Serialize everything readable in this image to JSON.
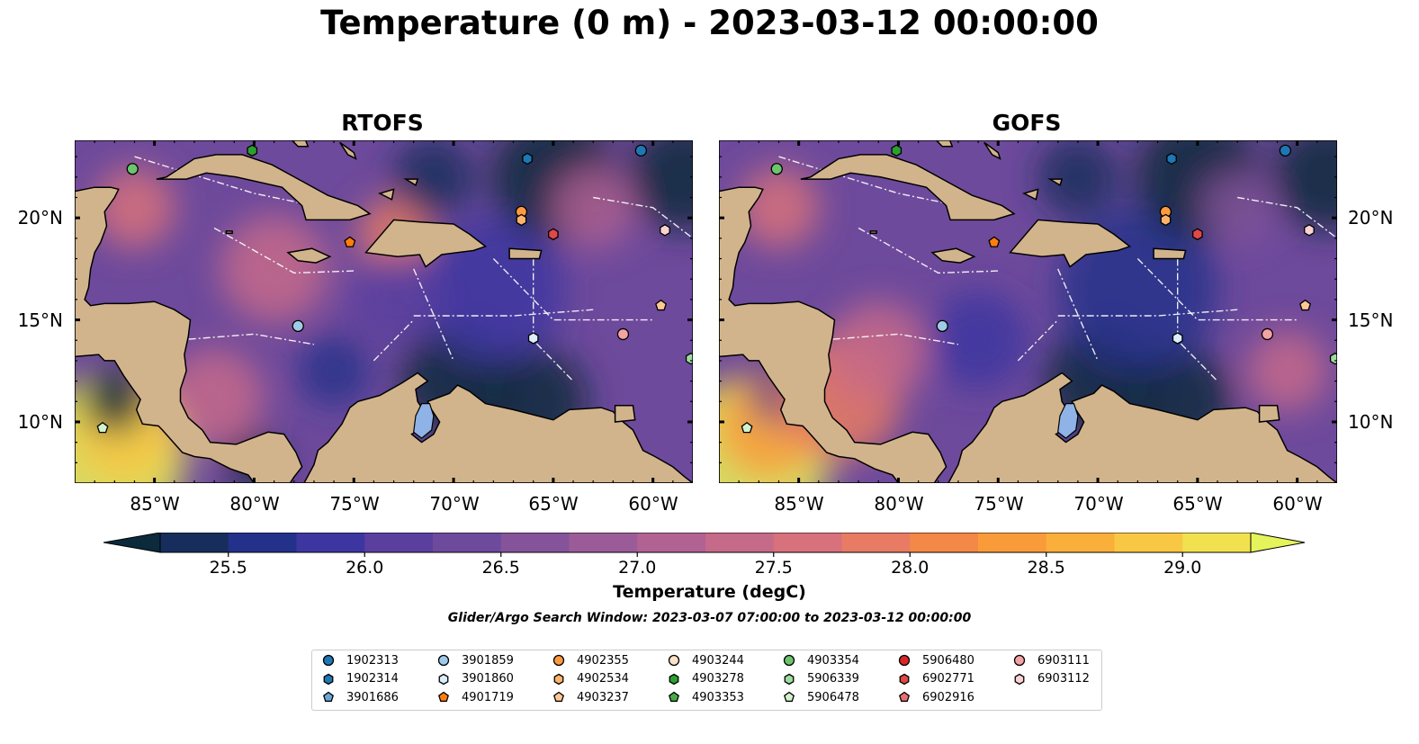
{
  "title": "Temperature (0 m) - 2023-03-12 00:00:00",
  "panels": [
    {
      "title": "RTOFS",
      "lon_ticks": [
        "85°W",
        "80°W",
        "75°W",
        "70°W",
        "65°W",
        "60°W"
      ],
      "lat_ticks": [
        "20°N",
        "15°N",
        "10°N"
      ]
    },
    {
      "title": "GOFS",
      "lon_ticks": [
        "85°W",
        "80°W",
        "75°W",
        "70°W",
        "65°W",
        "60°W"
      ],
      "lat_ticks": [
        "20°N",
        "15°N",
        "10°N"
      ]
    }
  ],
  "colorbar": {
    "label": "Temperature (degC)",
    "ticks": [
      "25.5",
      "26.0",
      "26.5",
      "27.0",
      "27.5",
      "28.0",
      "28.5",
      "29.0"
    ],
    "colors": [
      "#0b2a3c",
      "#172e5c",
      "#23318a",
      "#3d36a0",
      "#5a3f9f",
      "#6e4a9c",
      "#84539a",
      "#9a5b98",
      "#b16293",
      "#c56a89",
      "#d7717b",
      "#e87b63",
      "#f48846",
      "#fa9b3a",
      "#faaf3a",
      "#f8c744",
      "#f2e14f",
      "#e6f45c"
    ],
    "range_min": 25.25,
    "range_max": 29.25
  },
  "search_window": "Glider/Argo Search Window: 2023-03-07 07:00:00 to 2023-03-12 00:00:00",
  "legend": [
    {
      "id": "1902313",
      "marker": "circle",
      "color": "#1f77b4"
    },
    {
      "id": "1902314",
      "marker": "hexagon",
      "color": "#1f77b4"
    },
    {
      "id": "3901686",
      "marker": "pentagon",
      "color": "#6aa6d8"
    },
    {
      "id": "3901859",
      "marker": "circle",
      "color": "#9fcbe8"
    },
    {
      "id": "3901860",
      "marker": "hexagon",
      "color": "#dbeefa"
    },
    {
      "id": "4901719",
      "marker": "pentagon",
      "color": "#ff7f0e"
    },
    {
      "id": "4902355",
      "marker": "circle",
      "color": "#fd9a3f"
    },
    {
      "id": "4902534",
      "marker": "hexagon",
      "color": "#fdb36c"
    },
    {
      "id": "4903237",
      "marker": "pentagon",
      "color": "#fdc894"
    },
    {
      "id": "4903244",
      "marker": "circle",
      "color": "#fde2c8"
    },
    {
      "id": "4903278",
      "marker": "hexagon",
      "color": "#2ca02c"
    },
    {
      "id": "4903353",
      "marker": "pentagon",
      "color": "#44ad44"
    },
    {
      "id": "4903354",
      "marker": "circle",
      "color": "#6cc46c"
    },
    {
      "id": "5906339",
      "marker": "hexagon",
      "color": "#9edb9e"
    },
    {
      "id": "5906478",
      "marker": "pentagon",
      "color": "#d2f2cc"
    },
    {
      "id": "5906480",
      "marker": "circle",
      "color": "#d62728"
    },
    {
      "id": "6902771",
      "marker": "hexagon",
      "color": "#e04848"
    },
    {
      "id": "6902916",
      "marker": "pentagon",
      "color": "#e87070"
    },
    {
      "id": "6903111",
      "marker": "circle",
      "color": "#f4a3a3"
    },
    {
      "id": "6903112",
      "marker": "hexagon",
      "color": "#fbd2d2"
    }
  ],
  "floats": [
    {
      "id": "1902313",
      "lon": -60.6,
      "lat": 23.3
    },
    {
      "id": "1902314",
      "lon": -66.3,
      "lat": 22.9
    },
    {
      "id": "4903278",
      "lon": -80.1,
      "lat": 23.3
    },
    {
      "id": "4903354",
      "lon": -86.1,
      "lat": 22.4
    },
    {
      "id": "4902355",
      "lon": -66.6,
      "lat": 20.3
    },
    {
      "id": "4902534",
      "lon": -66.6,
      "lat": 19.9
    },
    {
      "id": "6902771",
      "lon": -65.0,
      "lat": 19.2
    },
    {
      "id": "4901719",
      "lon": -75.2,
      "lat": 18.8
    },
    {
      "id": "6903112",
      "lon": -59.4,
      "lat": 19.4
    },
    {
      "id": "3901859",
      "lon": -77.8,
      "lat": 14.7
    },
    {
      "id": "3901860",
      "lon": -66.0,
      "lat": 14.1
    },
    {
      "id": "6903111",
      "lon": -61.5,
      "lat": 14.3
    },
    {
      "id": "4903237",
      "lon": -59.6,
      "lat": 15.7
    },
    {
      "id": "5906478",
      "lon": -87.6,
      "lat": 9.7
    },
    {
      "id": "5906339",
      "lon": -58.1,
      "lat": 13.1
    }
  ]
}
